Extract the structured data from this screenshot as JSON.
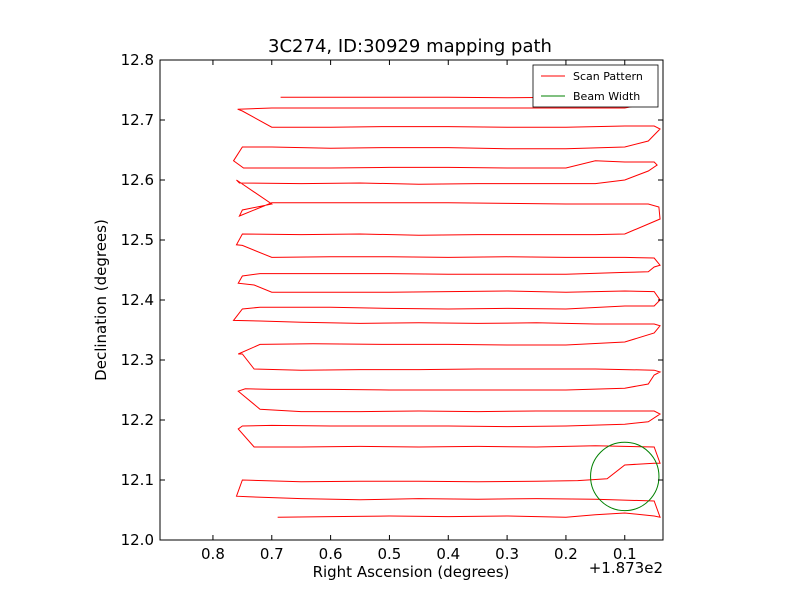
{
  "chart_data": {
    "type": "line",
    "title": "3C274, ID:30929 mapping path",
    "xlabel": "Right Ascension (degrees)",
    "ylabel": "Declination (degrees)",
    "x_offset_label": "+1.873e2",
    "xlim": [
      0.89,
      0.035
    ],
    "ylim": [
      12.0,
      12.8
    ],
    "x_ticks": [
      0.8,
      0.7,
      0.6,
      0.5,
      0.4,
      0.3,
      0.2,
      0.1
    ],
    "x_tick_labels": [
      "0.8",
      "0.7",
      "0.6",
      "0.5",
      "0.4",
      "0.3",
      "0.2",
      "0.1"
    ],
    "y_ticks": [
      12.0,
      12.1,
      12.2,
      12.3,
      12.4,
      12.5,
      12.6,
      12.7,
      12.8
    ],
    "y_tick_labels": [
      "12.0",
      "12.1",
      "12.2",
      "12.3",
      "12.4",
      "12.5",
      "12.6",
      "12.7",
      "12.8"
    ],
    "legend_position": "top-right",
    "grid": false,
    "series": [
      {
        "name": "Scan Pattern",
        "color": "#ff0000",
        "points": [
          [
            0.69,
            12.038
          ],
          [
            0.6,
            12.039
          ],
          [
            0.5,
            12.04
          ],
          [
            0.4,
            12.039
          ],
          [
            0.3,
            12.04
          ],
          [
            0.2,
            12.038
          ],
          [
            0.15,
            12.042
          ],
          [
            0.1,
            12.045
          ],
          [
            0.05,
            12.04
          ],
          [
            0.04,
            12.038
          ],
          [
            0.05,
            12.065
          ],
          [
            0.15,
            12.068
          ],
          [
            0.25,
            12.069
          ],
          [
            0.35,
            12.068
          ],
          [
            0.45,
            12.069
          ],
          [
            0.55,
            12.067
          ],
          [
            0.65,
            12.069
          ],
          [
            0.74,
            12.072
          ],
          [
            0.76,
            12.073
          ],
          [
            0.75,
            12.1
          ],
          [
            0.65,
            12.097
          ],
          [
            0.55,
            12.098
          ],
          [
            0.45,
            12.098
          ],
          [
            0.35,
            12.097
          ],
          [
            0.25,
            12.098
          ],
          [
            0.18,
            12.099
          ],
          [
            0.13,
            12.102
          ],
          [
            0.1,
            12.125
          ],
          [
            0.05,
            12.128
          ],
          [
            0.04,
            12.128
          ],
          [
            0.05,
            12.155
          ],
          [
            0.15,
            12.157
          ],
          [
            0.25,
            12.155
          ],
          [
            0.35,
            12.156
          ],
          [
            0.45,
            12.155
          ],
          [
            0.55,
            12.156
          ],
          [
            0.65,
            12.155
          ],
          [
            0.73,
            12.155
          ],
          [
            0.757,
            12.185
          ],
          [
            0.75,
            12.19
          ],
          [
            0.7,
            12.191
          ],
          [
            0.6,
            12.19
          ],
          [
            0.5,
            12.19
          ],
          [
            0.4,
            12.19
          ],
          [
            0.3,
            12.189
          ],
          [
            0.2,
            12.19
          ],
          [
            0.1,
            12.193
          ],
          [
            0.06,
            12.197
          ],
          [
            0.04,
            12.21
          ],
          [
            0.05,
            12.215
          ],
          [
            0.15,
            12.215
          ],
          [
            0.25,
            12.215
          ],
          [
            0.35,
            12.214
          ],
          [
            0.45,
            12.215
          ],
          [
            0.55,
            12.214
          ],
          [
            0.65,
            12.214
          ],
          [
            0.72,
            12.218
          ],
          [
            0.757,
            12.248
          ],
          [
            0.745,
            12.252
          ],
          [
            0.7,
            12.251
          ],
          [
            0.6,
            12.251
          ],
          [
            0.5,
            12.25
          ],
          [
            0.4,
            12.25
          ],
          [
            0.3,
            12.25
          ],
          [
            0.2,
            12.25
          ],
          [
            0.1,
            12.253
          ],
          [
            0.06,
            12.26
          ],
          [
            0.05,
            12.275
          ],
          [
            0.04,
            12.28
          ],
          [
            0.05,
            12.283
          ],
          [
            0.15,
            12.285
          ],
          [
            0.25,
            12.285
          ],
          [
            0.35,
            12.285
          ],
          [
            0.45,
            12.284
          ],
          [
            0.55,
            12.284
          ],
          [
            0.65,
            12.283
          ],
          [
            0.73,
            12.285
          ],
          [
            0.75,
            12.31
          ],
          [
            0.757,
            12.31
          ],
          [
            0.72,
            12.326
          ],
          [
            0.63,
            12.327
          ],
          [
            0.5,
            12.326
          ],
          [
            0.4,
            12.326
          ],
          [
            0.3,
            12.325
          ],
          [
            0.2,
            12.325
          ],
          [
            0.1,
            12.33
          ],
          [
            0.05,
            12.345
          ],
          [
            0.04,
            12.357
          ],
          [
            0.05,
            12.36
          ],
          [
            0.1,
            12.36
          ],
          [
            0.15,
            12.36
          ],
          [
            0.25,
            12.362
          ],
          [
            0.35,
            12.361
          ],
          [
            0.45,
            12.362
          ],
          [
            0.55,
            12.361
          ],
          [
            0.65,
            12.363
          ],
          [
            0.72,
            12.365
          ],
          [
            0.765,
            12.366
          ],
          [
            0.75,
            12.385
          ],
          [
            0.72,
            12.388
          ],
          [
            0.6,
            12.388
          ],
          [
            0.5,
            12.386
          ],
          [
            0.4,
            12.385
          ],
          [
            0.3,
            12.386
          ],
          [
            0.2,
            12.385
          ],
          [
            0.1,
            12.39
          ],
          [
            0.05,
            12.39
          ],
          [
            0.04,
            12.4
          ],
          [
            0.05,
            12.414
          ],
          [
            0.1,
            12.415
          ],
          [
            0.2,
            12.413
          ],
          [
            0.3,
            12.415
          ],
          [
            0.4,
            12.414
          ],
          [
            0.5,
            12.413
          ],
          [
            0.6,
            12.413
          ],
          [
            0.7,
            12.413
          ],
          [
            0.73,
            12.425
          ],
          [
            0.757,
            12.428
          ],
          [
            0.75,
            12.44
          ],
          [
            0.72,
            12.444
          ],
          [
            0.6,
            12.444
          ],
          [
            0.5,
            12.444
          ],
          [
            0.4,
            12.443
          ],
          [
            0.3,
            12.443
          ],
          [
            0.2,
            12.443
          ],
          [
            0.1,
            12.446
          ],
          [
            0.06,
            12.447
          ],
          [
            0.05,
            12.455
          ],
          [
            0.04,
            12.458
          ],
          [
            0.05,
            12.47
          ],
          [
            0.1,
            12.471
          ],
          [
            0.2,
            12.471
          ],
          [
            0.3,
            12.472
          ],
          [
            0.4,
            12.471
          ],
          [
            0.5,
            12.472
          ],
          [
            0.6,
            12.472
          ],
          [
            0.7,
            12.471
          ],
          [
            0.75,
            12.491
          ],
          [
            0.76,
            12.492
          ],
          [
            0.75,
            12.51
          ],
          [
            0.65,
            12.509
          ],
          [
            0.55,
            12.51
          ],
          [
            0.45,
            12.508
          ],
          [
            0.35,
            12.509
          ],
          [
            0.25,
            12.509
          ],
          [
            0.15,
            12.509
          ],
          [
            0.1,
            12.51
          ],
          [
            0.04,
            12.535
          ],
          [
            0.042,
            12.555
          ],
          [
            0.06,
            12.56
          ],
          [
            0.1,
            12.56
          ],
          [
            0.2,
            12.56
          ],
          [
            0.3,
            12.561
          ],
          [
            0.4,
            12.562
          ],
          [
            0.5,
            12.562
          ],
          [
            0.6,
            12.562
          ],
          [
            0.7,
            12.562
          ],
          [
            0.755,
            12.54
          ],
          [
            0.75,
            12.55
          ],
          [
            0.7,
            12.56
          ],
          [
            0.76,
            12.6
          ],
          [
            0.755,
            12.595
          ],
          [
            0.65,
            12.594
          ],
          [
            0.55,
            12.595
          ],
          [
            0.45,
            12.593
          ],
          [
            0.35,
            12.594
          ],
          [
            0.25,
            12.594
          ],
          [
            0.15,
            12.594
          ],
          [
            0.1,
            12.6
          ],
          [
            0.06,
            12.615
          ],
          [
            0.045,
            12.625
          ],
          [
            0.05,
            12.63
          ],
          [
            0.1,
            12.63
          ],
          [
            0.15,
            12.632
          ],
          [
            0.2,
            12.62
          ],
          [
            0.3,
            12.62
          ],
          [
            0.4,
            12.621
          ],
          [
            0.5,
            12.621
          ],
          [
            0.6,
            12.62
          ],
          [
            0.7,
            12.62
          ],
          [
            0.748,
            12.62
          ],
          [
            0.765,
            12.632
          ],
          [
            0.75,
            12.655
          ],
          [
            0.7,
            12.655
          ],
          [
            0.6,
            12.653
          ],
          [
            0.5,
            12.654
          ],
          [
            0.4,
            12.654
          ],
          [
            0.3,
            12.652
          ],
          [
            0.2,
            12.652
          ],
          [
            0.1,
            12.655
          ],
          [
            0.06,
            12.665
          ],
          [
            0.04,
            12.685
          ],
          [
            0.05,
            12.69
          ],
          [
            0.1,
            12.69
          ],
          [
            0.2,
            12.688
          ],
          [
            0.3,
            12.688
          ],
          [
            0.4,
            12.689
          ],
          [
            0.5,
            12.689
          ],
          [
            0.6,
            12.688
          ],
          [
            0.7,
            12.688
          ],
          [
            0.75,
            12.715
          ],
          [
            0.758,
            12.718
          ],
          [
            0.7,
            12.72
          ],
          [
            0.6,
            12.72
          ],
          [
            0.5,
            12.72
          ],
          [
            0.4,
            12.72
          ],
          [
            0.3,
            12.72
          ],
          [
            0.2,
            12.72
          ],
          [
            0.1,
            12.72
          ],
          [
            0.07,
            12.726
          ],
          [
            0.1,
            12.735
          ],
          [
            0.2,
            12.738
          ],
          [
            0.3,
            12.737
          ],
          [
            0.4,
            12.738
          ],
          [
            0.5,
            12.738
          ],
          [
            0.6,
            12.738
          ],
          [
            0.685,
            12.738
          ]
        ]
      },
      {
        "name": "Beam Width",
        "color": "#008000",
        "shape": "circle",
        "center": [
          0.1,
          12.106
        ],
        "radius_deg": 0.057
      }
    ]
  }
}
